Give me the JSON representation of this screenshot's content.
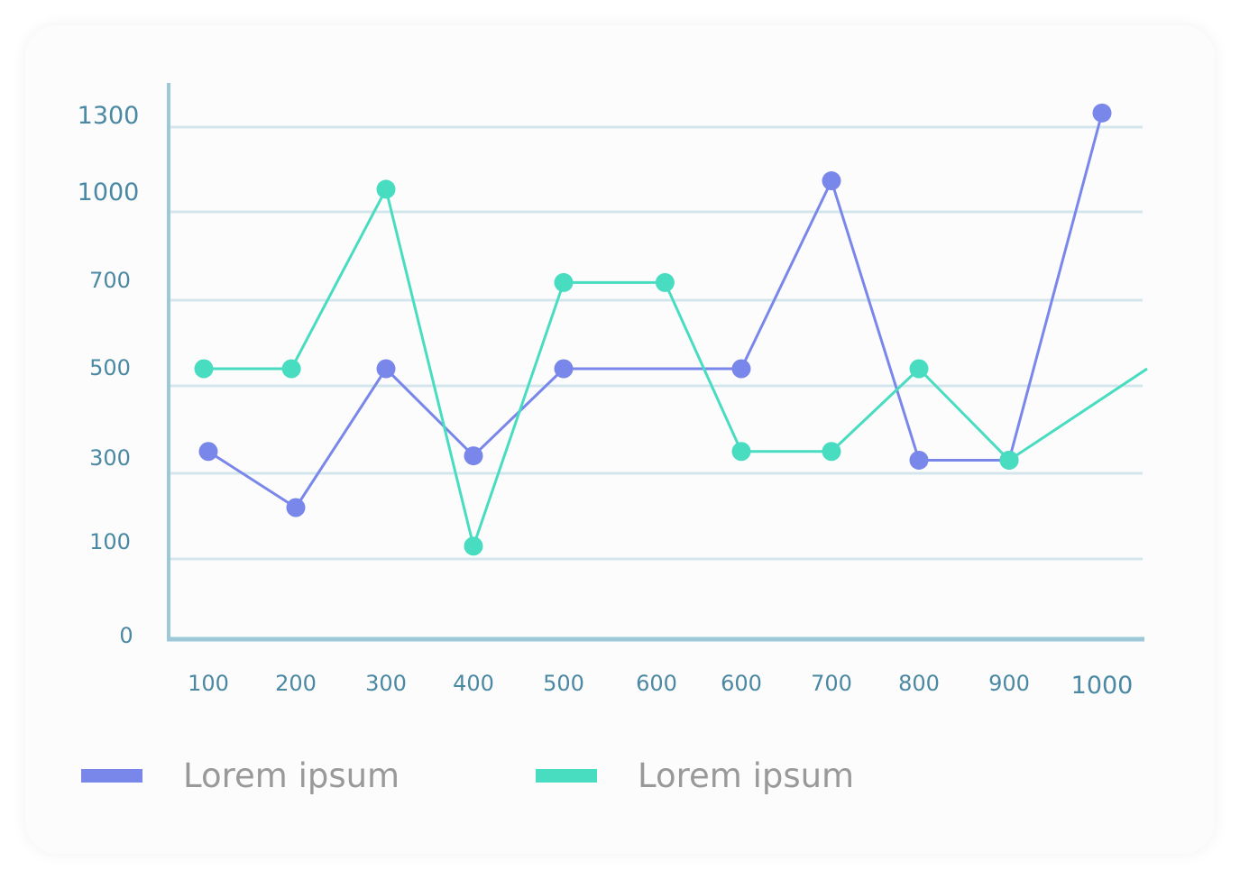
{
  "chart_data": {
    "type": "line",
    "x_tick_labels": [
      "100",
      "200",
      "300",
      "400",
      "500",
      "600",
      "600",
      "700",
      "800",
      "900",
      "1000"
    ],
    "y_tick_labels": [
      "0",
      "100",
      "300",
      "500",
      "700",
      "1000",
      "1300"
    ],
    "y_tick_values": [
      0,
      100,
      300,
      500,
      700,
      1000,
      1300
    ],
    "grid": true,
    "legend_position": "bottom",
    "series": [
      {
        "name": "Lorem ipsum",
        "color": "#7a87ea",
        "points": [
          {
            "x": 1,
            "y": 350
          },
          {
            "x": 2,
            "y": 220
          },
          {
            "x": 3,
            "y": 540
          },
          {
            "x": 4,
            "y": 340
          },
          {
            "x": 5,
            "y": 540
          },
          {
            "x": 7,
            "y": 540
          },
          {
            "x": 8,
            "y": 1110
          },
          {
            "x": 9,
            "y": 330
          },
          {
            "x": 10,
            "y": 330
          },
          {
            "x": 11,
            "y": 1350
          }
        ]
      },
      {
        "name": "Lorem ipsum",
        "color": "#48dcc0",
        "points": [
          {
            "x": 0.95,
            "y": 540
          },
          {
            "x": 1.95,
            "y": 540
          },
          {
            "x": 3,
            "y": 1080
          },
          {
            "x": 4,
            "y": 130
          },
          {
            "x": 5,
            "y": 760
          },
          {
            "x": 6.1,
            "y": 760
          },
          {
            "x": 7,
            "y": 350
          },
          {
            "x": 8,
            "y": 350
          },
          {
            "x": 9,
            "y": 540
          },
          {
            "x": 10,
            "y": 330
          },
          {
            "x": 11.5,
            "y": 540,
            "marker": false
          }
        ]
      }
    ]
  }
}
